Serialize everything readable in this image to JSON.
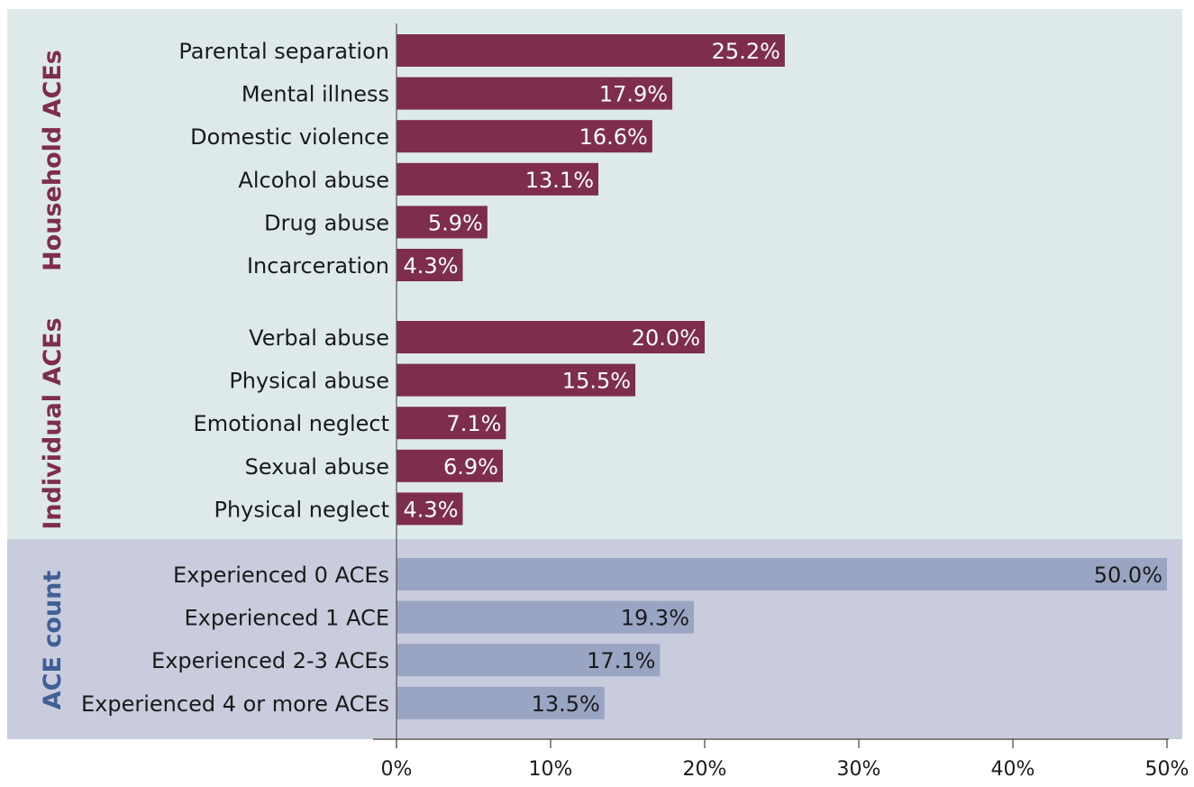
{
  "chart_data": {
    "type": "bar",
    "orientation": "horizontal",
    "xlim": [
      0,
      50
    ],
    "x_ticks": [
      "0%",
      "10%",
      "20%",
      "30%",
      "40%",
      "50%"
    ],
    "colors": {
      "household_bg": "#deeaea",
      "individual_bg": "#deeaea",
      "count_bg": "#c9ccdc",
      "abuse_bar": "#7e2d4f",
      "count_bar": "#9aa4c3",
      "household_label": "#7e2d4f",
      "individual_label": "#7e2d4f",
      "count_label": "#3f5f95"
    },
    "groups": [
      {
        "key": "household",
        "label": "Household ACEs",
        "categories": [
          "Parental separation",
          "Mental illness",
          "Domestic violence",
          "Alcohol abuse",
          "Drug abuse",
          "Incarceration"
        ],
        "values": [
          25.2,
          17.9,
          16.6,
          13.1,
          5.9,
          4.3
        ],
        "value_labels": [
          "25.2%",
          "17.9%",
          "16.6%",
          "13.1%",
          "5.9%",
          "4.3%"
        ]
      },
      {
        "key": "individual",
        "label": "Individual ACEs",
        "categories": [
          "Verbal abuse",
          "Physical abuse",
          "Emotional neglect",
          "Sexual abuse",
          "Physical neglect"
        ],
        "values": [
          20.0,
          15.5,
          7.1,
          6.9,
          4.3
        ],
        "value_labels": [
          "20.0%",
          "15.5%",
          "7.1%",
          "6.9%",
          "4.3%"
        ]
      },
      {
        "key": "count",
        "label": "ACE count",
        "categories": [
          "Experienced 0 ACEs",
          "Experienced 1 ACE",
          "Experienced 2-3 ACEs",
          "Experienced 4 or more ACEs"
        ],
        "values": [
          50.0,
          19.3,
          17.1,
          13.5
        ],
        "value_labels": [
          "50.0%",
          "19.3%",
          "17.1%",
          "13.5%"
        ]
      }
    ]
  }
}
